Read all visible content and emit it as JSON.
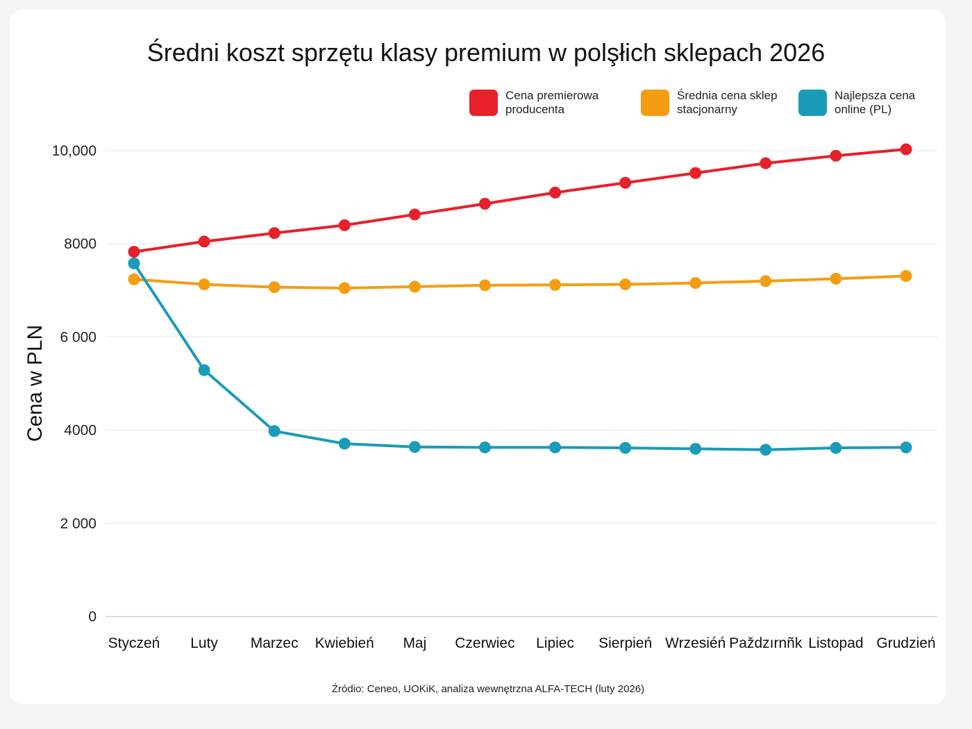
{
  "chart_data": {
    "type": "line",
    "title": "Średni koszt sprzętu klasy premium w polşłich sklepach 2026",
    "xlabel": "",
    "ylabel": "Cena w PLN",
    "ylim": [
      0,
      10000
    ],
    "yticks": [
      0,
      2000,
      4000,
      6000,
      8000,
      10000
    ],
    "ytick_labels": [
      "0",
      "2 000",
      "4000",
      "6 000",
      "8000",
      "10,000"
    ],
    "grid": true,
    "legend_position": "top-right",
    "categories": [
      "Styczeń",
      "Luty",
      "Marzec",
      "Kwiebień",
      "Maj",
      "Czerwiec",
      "Lipiec",
      "Sierpień",
      "Wrzesiéń",
      "Paždzırnñk",
      "Listopad",
      "Grudzień"
    ],
    "series": [
      {
        "name": "Cena premierowa producenta",
        "color": "#e8202a",
        "values": [
          7830,
          8050,
          8230,
          8400,
          8630,
          8860,
          9100,
          9310,
          9520,
          9730,
          9890,
          10030
        ]
      },
      {
        "name": "Średnia cena sklep stacjonarny",
        "color": "#f59d12",
        "values": [
          7240,
          7130,
          7070,
          7050,
          7080,
          7110,
          7120,
          7130,
          7160,
          7200,
          7250,
          7310
        ]
      },
      {
        "name": "Najlepsza cena online (PL)",
        "color": "#1a9bb8",
        "values": [
          7580,
          5290,
          3980,
          3710,
          3640,
          3630,
          3630,
          3620,
          3600,
          3580,
          3620,
          3630
        ]
      }
    ],
    "legend_labels": [
      [
        "Cena premierowa",
        "producenta"
      ],
      [
        "Średnia cena sklep",
        "stacjonarny"
      ],
      [
        "Najlepsza cena",
        "online (PL)"
      ]
    ],
    "source": "Źródio: Ceneo, UOKiK, analiza wewnętrzna ALFA-TECH (luty 2026)"
  }
}
